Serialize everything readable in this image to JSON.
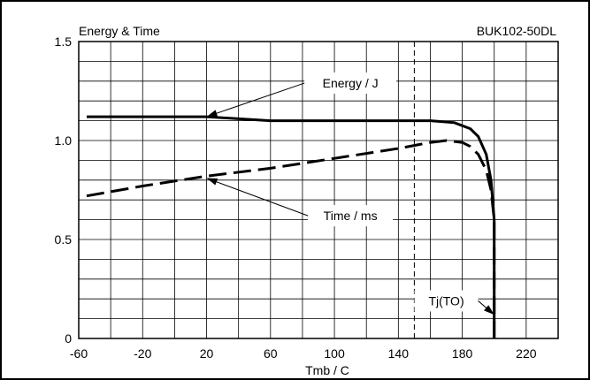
{
  "chart_data": {
    "type": "line",
    "title": "Energy & Time",
    "part_number": "BUK102-50DL",
    "xlabel": "Tmb / C",
    "ylabel": "",
    "xlim": [
      -60,
      240
    ],
    "ylim": [
      0,
      1.5
    ],
    "x_ticks": [
      -60,
      -20,
      20,
      60,
      100,
      140,
      180,
      220
    ],
    "x_tick_labels": [
      "-60",
      "-20",
      "20",
      "60",
      "100",
      "140",
      "180",
      "220"
    ],
    "y_ticks": [
      0,
      0.5,
      1.0,
      1.5
    ],
    "y_tick_labels": [
      "0",
      "0.5",
      "1.0",
      "1.5"
    ],
    "grid": true,
    "legend": "none",
    "series": [
      {
        "name": "Energy / J",
        "style": "solid",
        "x": [
          -55,
          -20,
          20,
          40,
          60,
          80,
          120,
          160,
          175,
          185,
          190,
          195,
          198,
          200,
          200
        ],
        "y": [
          1.12,
          1.12,
          1.12,
          1.11,
          1.1,
          1.1,
          1.1,
          1.1,
          1.09,
          1.06,
          1.02,
          0.93,
          0.8,
          0.6,
          0.0
        ]
      },
      {
        "name": "Time / ms",
        "style": "dashed",
        "x": [
          -55,
          -20,
          20,
          60,
          100,
          140,
          160,
          170,
          180,
          185,
          190,
          195,
          198,
          200,
          200
        ],
        "y": [
          0.72,
          0.77,
          0.82,
          0.86,
          0.91,
          0.96,
          0.99,
          1.0,
          0.99,
          0.97,
          0.93,
          0.85,
          0.75,
          0.6,
          0.0
        ]
      }
    ],
    "reference_lines": [
      {
        "axis": "x",
        "value": 150,
        "style": "dashed"
      }
    ],
    "annotations": [
      {
        "label": "Energy / J",
        "target_x": 20,
        "target_y": 1.12,
        "text_x": 110,
        "text_y": 1.29
      },
      {
        "label": "Time / ms",
        "target_x": 20,
        "target_y": 0.81,
        "text_x": 110,
        "text_y": 0.62
      },
      {
        "label": "Tj(TO)",
        "target_x": 200,
        "target_y": 0.12,
        "text_x": 170,
        "text_y": 0.19
      }
    ]
  }
}
